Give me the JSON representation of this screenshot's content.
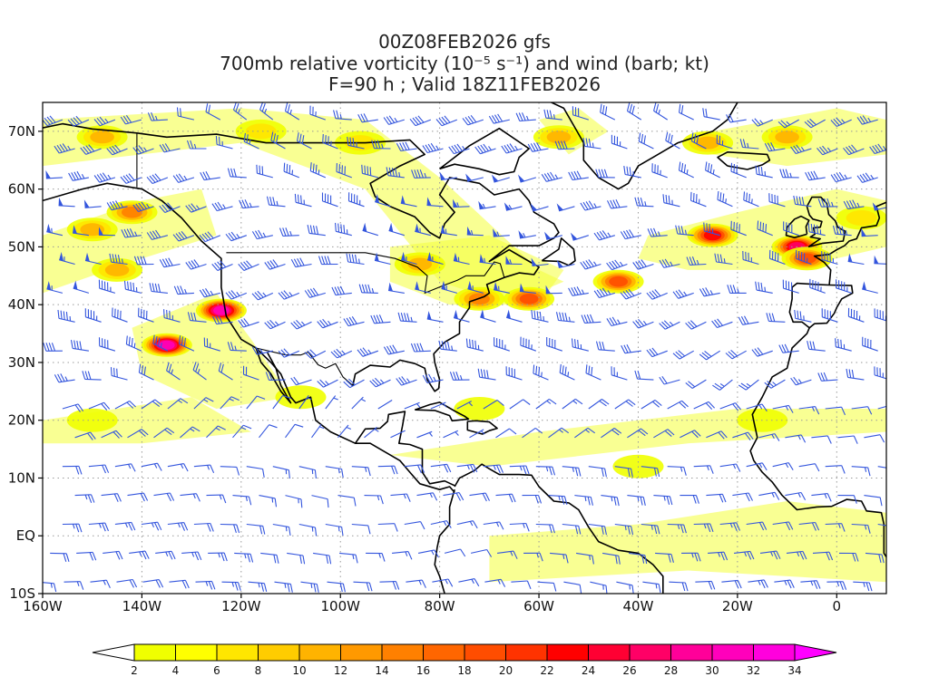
{
  "title": {
    "line1": "00Z08FEB2026 gfs",
    "line2": "700mb relative vorticity (10⁻⁵ s⁻¹) and wind (barb; kt)",
    "line3": "F=90 h ; Valid 18Z11FEB2026"
  },
  "map": {
    "lon_range": [
      -160,
      10
    ],
    "lat_range": [
      -10,
      75
    ],
    "lon_ticks": [
      {
        "lon": -160,
        "label": "160W"
      },
      {
        "lon": -140,
        "label": "140W"
      },
      {
        "lon": -120,
        "label": "120W"
      },
      {
        "lon": -100,
        "label": "100W"
      },
      {
        "lon": -80,
        "label": "80W"
      },
      {
        "lon": -60,
        "label": "60W"
      },
      {
        "lon": -40,
        "label": "40W"
      },
      {
        "lon": -20,
        "label": "20W"
      },
      {
        "lon": 0,
        "label": "0"
      }
    ],
    "lat_ticks": [
      {
        "lat": 70,
        "label": "70N"
      },
      {
        "lat": 60,
        "label": "60N"
      },
      {
        "lat": 50,
        "label": "50N"
      },
      {
        "lat": 40,
        "label": "40N"
      },
      {
        "lat": 30,
        "label": "30N"
      },
      {
        "lat": 20,
        "label": "20N"
      },
      {
        "lat": 10,
        "label": "10N"
      },
      {
        "lat": 0,
        "label": "EQ"
      },
      {
        "lat": -10,
        "label": "10S"
      }
    ],
    "colors": {
      "barb": "#3355dd",
      "coast": "#000000",
      "grid": "#999999"
    },
    "vorticity_features": [
      {
        "lon": -142,
        "lat": 56,
        "level": 14
      },
      {
        "lon": -150,
        "lat": 53,
        "level": 10
      },
      {
        "lon": -145,
        "lat": 46,
        "level": 12
      },
      {
        "lon": -135,
        "lat": 33,
        "level": 32
      },
      {
        "lon": -124,
        "lat": 39,
        "level": 30
      },
      {
        "lon": -148,
        "lat": 69,
        "level": 10
      },
      {
        "lon": -116,
        "lat": 70,
        "level": 6
      },
      {
        "lon": -96,
        "lat": 68,
        "level": 8
      },
      {
        "lon": -84,
        "lat": 47,
        "level": 10
      },
      {
        "lon": -72,
        "lat": 41,
        "level": 14
      },
      {
        "lon": -62,
        "lat": 41,
        "level": 20
      },
      {
        "lon": -44,
        "lat": 44,
        "level": 18
      },
      {
        "lon": -25,
        "lat": 52,
        "level": 22
      },
      {
        "lon": -8,
        "lat": 50,
        "level": 28
      },
      {
        "lon": -6,
        "lat": 48,
        "level": 20
      },
      {
        "lon": -10,
        "lat": 69,
        "level": 12
      },
      {
        "lon": -26,
        "lat": 68,
        "level": 10
      },
      {
        "lon": 5,
        "lat": 55,
        "level": 8
      },
      {
        "lon": -108,
        "lat": 24,
        "level": 4
      },
      {
        "lon": -72,
        "lat": 22,
        "level": 4
      },
      {
        "lon": -40,
        "lat": 12,
        "level": 4
      },
      {
        "lon": -15,
        "lat": 20,
        "level": 4
      },
      {
        "lon": -150,
        "lat": 20,
        "level": 4
      },
      {
        "lon": -56,
        "lat": 69,
        "level": 12
      }
    ]
  },
  "colorbar": {
    "labels": [
      "2",
      "4",
      "6",
      "8",
      "10",
      "12",
      "14",
      "16",
      "18",
      "20",
      "22",
      "24",
      "26",
      "28",
      "30",
      "32",
      "34"
    ],
    "colors": [
      "#f0ff00",
      "#ffff00",
      "#ffe600",
      "#ffcc00",
      "#ffb300",
      "#ff9900",
      "#ff8000",
      "#ff6600",
      "#ff4d00",
      "#ff3300",
      "#ff0000",
      "#ff0033",
      "#ff0066",
      "#ff0099",
      "#ff00bb",
      "#ff00dd"
    ],
    "under_color": "#ffffff",
    "over_color": "#ff00ff"
  }
}
